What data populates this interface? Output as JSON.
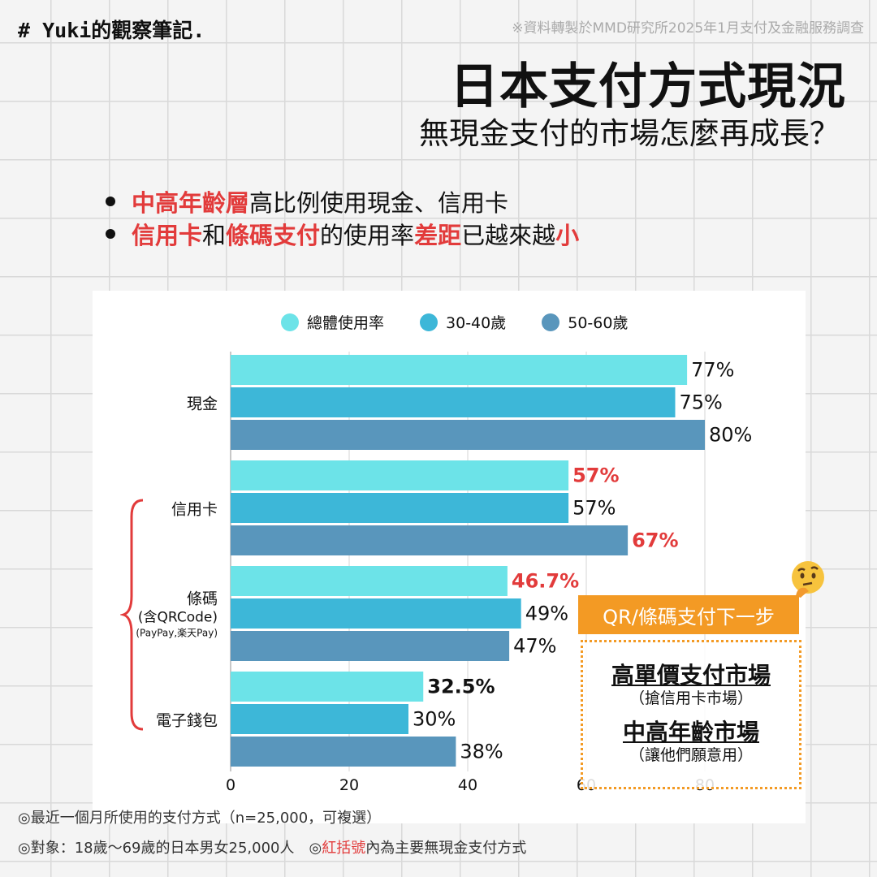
{
  "header": {
    "hashtag": "# Yuki的觀察筆記.",
    "source": "※資料轉製於MMD研究所2025年1月支付及金融服務調查",
    "title": "日本支付方式現況",
    "subtitle": "無現金支付的市場怎麼再成長？"
  },
  "bullets": [
    [
      {
        "t": "中高年齡層",
        "red": true
      },
      {
        "t": "高比例使用現金、信用卡",
        "red": false
      }
    ],
    [
      {
        "t": "信用卡",
        "red": true
      },
      {
        "t": "和",
        "red": false
      },
      {
        "t": "條碼支付",
        "red": true
      },
      {
        "t": "的使用率",
        "red": false
      },
      {
        "t": "差距",
        "red": true
      },
      {
        "t": "已越來越",
        "red": false
      },
      {
        "t": "小",
        "red": true
      }
    ]
  ],
  "colors": {
    "series1": "#6ce3e8",
    "series2": "#3db7d8",
    "series3": "#5996bc",
    "highlight": "#e23b3b",
    "accent": "#f39a24"
  },
  "chart_data": {
    "type": "bar",
    "orientation": "horizontal",
    "categories": [
      "現金",
      "信用卡",
      "條碼\n(含QRCode)\n(PayPay,楽天Pay)",
      "電子錢包"
    ],
    "series": [
      {
        "name": "總體使用率",
        "values": [
          77,
          57,
          46.7,
          32.5
        ],
        "labels": [
          "77%",
          "57%",
          "46.7%",
          "32.5%"
        ],
        "highlight": [
          false,
          true,
          true,
          false
        ]
      },
      {
        "name": "30-40歲",
        "values": [
          75,
          57,
          49,
          30
        ],
        "labels": [
          "75%",
          "57%",
          "49%",
          "30%"
        ],
        "highlight": [
          false,
          false,
          false,
          false
        ]
      },
      {
        "name": "50-60歲",
        "values": [
          80,
          67,
          47,
          38
        ],
        "labels": [
          "80%",
          "67%",
          "47%",
          "38%"
        ],
        "highlight": [
          false,
          true,
          false,
          false
        ]
      }
    ],
    "xticks": [
      0,
      20,
      40,
      60,
      80
    ],
    "xlim": [
      0,
      80
    ],
    "grid": true,
    "legend": "top"
  },
  "callout": {
    "heading": "QR/條碼支付下一步",
    "line1": "高單價支付市場",
    "line1_sub": "（搶信用卡市場）",
    "line2": "中高年齡市場",
    "line2_sub": "（讓他們願意用）"
  },
  "notes": {
    "note1": "◎最近一個月所使用的支付方式（n=25,000，可複選）",
    "note2_a": "◎對象：18歲～69歲的日本男女25,000人　◎",
    "note2_red": "紅括號",
    "note2_b": "內為主要無現金支付方式"
  }
}
